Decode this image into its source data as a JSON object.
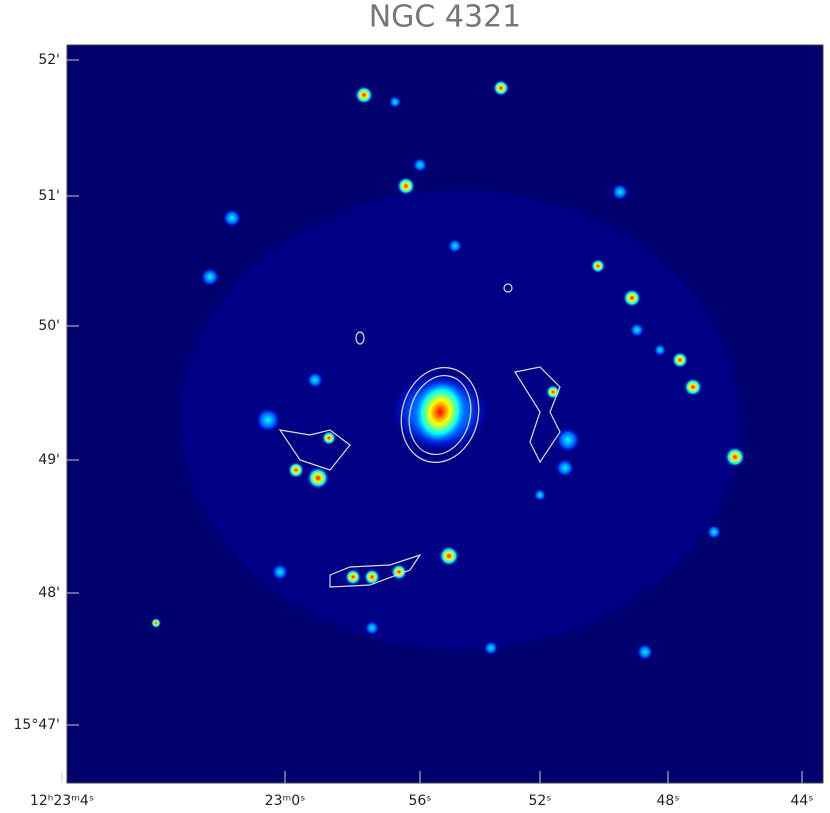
{
  "title": "NGC 4321",
  "y_axis": {
    "labels": [
      "52'",
      "51'",
      "50'",
      "49'",
      "48'",
      "15°47'"
    ]
  },
  "x_axis": {
    "labels": [
      "12ʰ23ᵐ4ˢ",
      "23ᵐ0ˢ",
      "56ˢ",
      "52ˢ",
      "48ˢ",
      "44ˢ"
    ]
  }
}
